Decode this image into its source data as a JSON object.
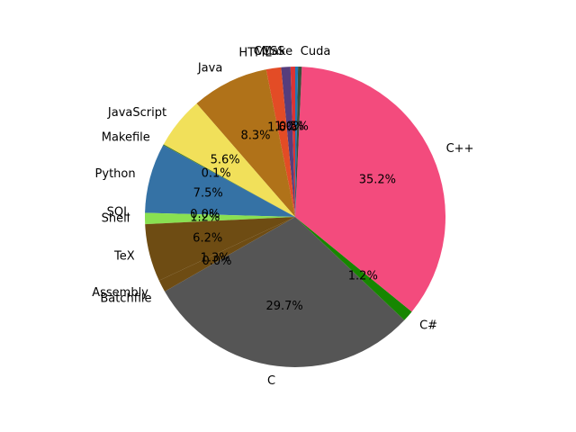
{
  "chart_data": {
    "type": "pie",
    "title": "",
    "start_angle_deg": 90,
    "direction": "counterclockwise",
    "slices": [
      {
        "label": "CMake",
        "value": 0.5,
        "pct_label": "0.5%",
        "color": "#DA3434"
      },
      {
        "label": "CSS",
        "value": 1.0,
        "pct_label": "1.0%",
        "color": "#563D7C"
      },
      {
        "label": "HTML",
        "value": 1.6,
        "pct_label": "1.6%",
        "color": "#E34C26"
      },
      {
        "label": "Java",
        "value": 8.3,
        "pct_label": "8.3%",
        "color": "#B07219"
      },
      {
        "label": "JavaScript",
        "value": 5.6,
        "pct_label": "5.6%",
        "color": "#F1E05A"
      },
      {
        "label": "Makefile",
        "value": 0.1,
        "pct_label": "0.1%",
        "color": "#427819"
      },
      {
        "label": "Python",
        "value": 7.5,
        "pct_label": "7.5%",
        "color": "#3572A5"
      },
      {
        "label": "SQL",
        "value": 0.0,
        "pct_label": "0.0%",
        "color": "#E38C00"
      },
      {
        "label": "Shell",
        "value": 1.2,
        "pct_label": "1.2%",
        "color": "#89E051"
      },
      {
        "label": "TeX",
        "value": 6.2,
        "pct_label": "6.2%",
        "color": "#6E4C13"
      },
      {
        "label": "Assembly",
        "value": 1.3,
        "pct_label": "1.3%",
        "color": "#6E4C13"
      },
      {
        "label": "Batchfile",
        "value": 0.0,
        "pct_label": "0.0%",
        "color": "#C1F12E"
      },
      {
        "label": "C",
        "value": 29.7,
        "pct_label": "29.7%",
        "color": "#555555"
      },
      {
        "label": "C#",
        "value": 1.2,
        "pct_label": "1.2%",
        "color": "#178600"
      },
      {
        "label": "C++",
        "value": 35.2,
        "pct_label": "35.2%",
        "color": "#F34B7D"
      },
      {
        "label": "Cuda",
        "value": 0.4,
        "pct_label": "",
        "color": "#3A4E3A"
      },
      {
        "label": "",
        "value": 0.3,
        "pct_label": "",
        "color": "#1F77B4"
      }
    ]
  }
}
